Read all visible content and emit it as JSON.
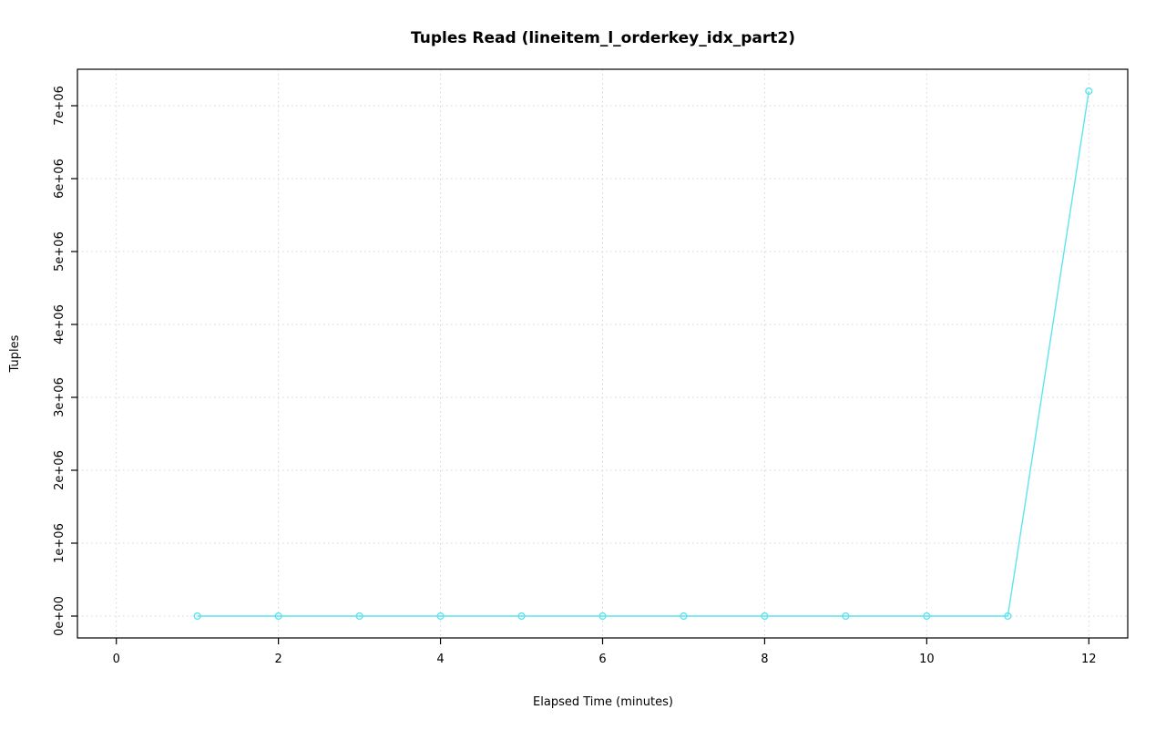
{
  "chart_data": {
    "type": "line",
    "title": "Tuples Read (lineitem_l_orderkey_idx_part2)",
    "xlabel": "Elapsed Time (minutes)",
    "ylabel": "Tuples",
    "x": [
      1,
      2,
      3,
      4,
      5,
      6,
      7,
      8,
      9,
      10,
      11,
      12
    ],
    "y": [
      0,
      0,
      0,
      0,
      0,
      0,
      0,
      0,
      0,
      0,
      0,
      7200000
    ],
    "xticks": [
      0,
      2,
      4,
      6,
      8,
      10,
      12
    ],
    "yticks": [
      0,
      1000000,
      2000000,
      3000000,
      4000000,
      5000000,
      6000000,
      7000000
    ],
    "ytick_labels": [
      "0e+00",
      "1e+06",
      "2e+06",
      "3e+06",
      "4e+06",
      "5e+06",
      "6e+06",
      "7e+06"
    ],
    "xlim": [
      -0.48,
      12.48
    ],
    "ylim": [
      -300000,
      7500000
    ],
    "grid": true,
    "legend": "none",
    "marker": "open-circle",
    "line_color": "#5ee4ee",
    "grid_color": "#d4d4d4",
    "axis_color": "#000000",
    "background_color": "#ffffff"
  }
}
